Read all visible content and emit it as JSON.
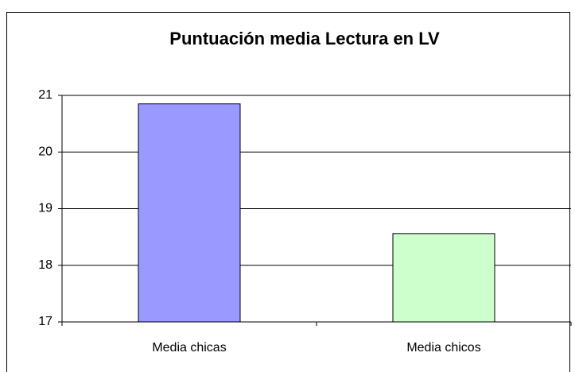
{
  "chart_data": {
    "type": "bar",
    "title": "Puntuación media Lectura en LV",
    "categories": [
      "Media chicas",
      "Media chicos"
    ],
    "values": [
      20.85,
      18.56
    ],
    "colors": [
      "#9999ff",
      "#ccffcc"
    ],
    "ylim": [
      17,
      21
    ],
    "yticks": [
      17,
      18,
      19,
      20,
      21
    ],
    "grid": true
  }
}
